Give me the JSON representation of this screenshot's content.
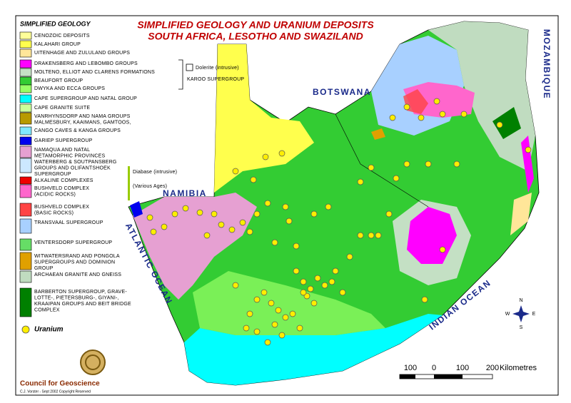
{
  "title": {
    "line1": "SIMPLIFIED GEOLOGY AND URANIUM DEPOSITS",
    "line2": "SOUTH AFRICA, LESOTHO AND SWAZILAND"
  },
  "legend": {
    "title": "SIMPLIFIED GEOLOGY",
    "items": [
      {
        "lines": [
          "CENOZOIC DEPOSITS"
        ],
        "color": "#ffff99"
      },
      {
        "lines": [
          "KALAHARI GROUP"
        ],
        "color": "#ffff4d"
      },
      {
        "lines": [
          "UITENHAGE AND ZULULAND GROUPS"
        ],
        "color": "#ffe699"
      },
      {
        "lines": [
          "DRAKENSBERG AND LEBOMBO GROUPS"
        ],
        "color": "#ff00ff"
      },
      {
        "lines": [
          "MOLTENO, ELLIOT AND CLARENS FORMATIONS"
        ],
        "color": "#c4e0c4"
      },
      {
        "lines": [
          "BEAUFORT GROUP"
        ],
        "color": "#33cc33"
      },
      {
        "lines": [
          "DWYKA AND ECCA GROUPS"
        ],
        "color": "#99ff66"
      },
      {
        "lines": [
          "CAPE SUPERGROUP AND NATAL GROUP"
        ],
        "color": "#00ffff"
      },
      {
        "lines": [
          "CAPE GRANITE SUITE"
        ],
        "color": "#ccff99"
      },
      {
        "lines": [
          "VANRHYNSDORP AND NAMA GROUPS",
          "MALMESBURY, KAAIMANS, GAMTOOS,"
        ],
        "color": "#b89a00"
      },
      {
        "lines": [
          "CANGO CAVES & KANGA GROUPS"
        ],
        "color": "#80e8ff"
      },
      {
        "lines": [
          "GARIEP SUPERGROUP"
        ],
        "color": "#0000ee"
      },
      {
        "lines": [
          "NAMAQUA AND NATAL",
          "METAMORPHIC PROVINCES"
        ],
        "color": "#e6a0d2"
      },
      {
        "lines": [
          "WATERBERG & SOUTPANSBERG",
          "GROUPS AND OLIFANTSHOEK",
          "SUPERGROUP"
        ],
        "color": "#cce8ff"
      },
      {
        "lines": [
          "ALKALINE COMPLEXES"
        ],
        "color": "#ee0000"
      },
      {
        "lines": [
          "BUSHVELD COMPLEX",
          "(ACIDIC ROCKS)"
        ],
        "color": "#ff66cc"
      },
      {
        "lines": [
          "BUSHVELD COMPLEX",
          "(BASIC ROCKS)"
        ],
        "color": "#ff4444"
      },
      {
        "lines": [
          "TRANSVAAL SUPERGROUP"
        ],
        "color": "#a8d0ff"
      },
      {
        "lines": [
          "VENTERSDORP SUPERGROUP"
        ],
        "color": "#66dd66"
      },
      {
        "lines": [
          "WITWATERSRAND AND PONGOLA",
          "SUPERGROUPS AND DOMINION",
          "GROUP"
        ],
        "color": "#e0a000"
      },
      {
        "lines": [
          "ARCHAEAN GRANITE AND GNEISS"
        ],
        "color": "#c0dcc0"
      },
      {
        "lines": [
          "BARBERTON SUPERGROUP, GRAVE-",
          "LOTTE-, PIETERSBURG-, GIYANI-,",
          "KRAAIPAN GROUPS AND BEIT BRIDGE",
          "COMPLEX"
        ],
        "color": "#008000"
      }
    ],
    "uranium": "Uranium"
  },
  "notes": {
    "dolerite": "Dolerite (intrusive)",
    "karoo": "KAROO SUPERGROUP",
    "diabase": "Diabase (intrusive)",
    "ages": "(Various Ages)"
  },
  "places": {
    "botswana": "BOTSWANA",
    "namibia": "NAMIBIA",
    "mozambique": "MOZAMBIQUE",
    "atlantic": "ATLANTIC OCEAN",
    "indian": "INDIAN OCEAN"
  },
  "scale": {
    "labels": [
      "100",
      "0",
      "100",
      "200"
    ],
    "unit": "Kilometres"
  },
  "compass": {
    "n": "N",
    "s": "S",
    "e": "E",
    "w": "W"
  },
  "footer": {
    "org": "Council for Geoscience",
    "credit": "C.J. Vorster  -  Sept 2002 Copyright Reserved"
  }
}
